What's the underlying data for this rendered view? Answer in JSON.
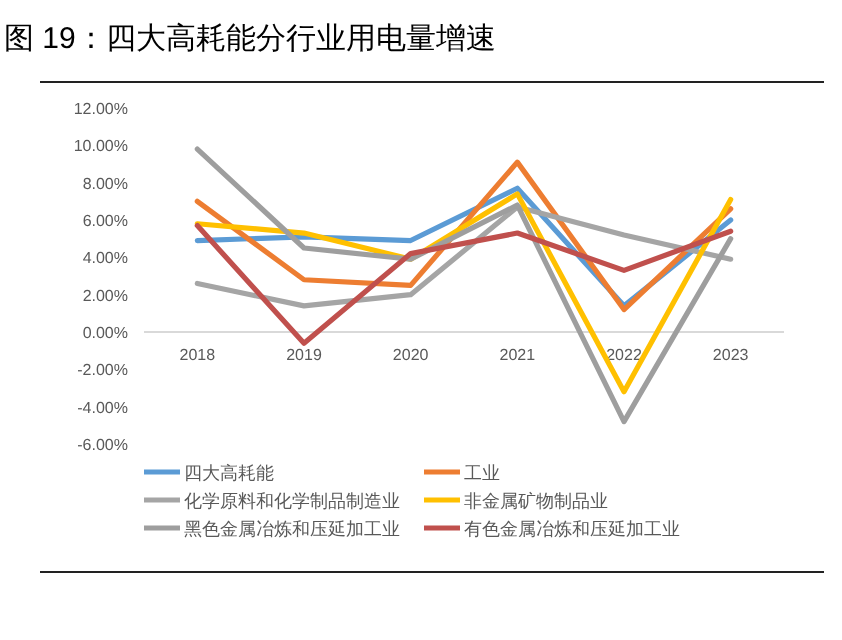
{
  "chart_data": {
    "type": "line",
    "title": "图 19：四大高耗能分行业用电量增速",
    "categories": [
      "2018",
      "2019",
      "2020",
      "2021",
      "2022",
      "2023"
    ],
    "series": [
      {
        "name": "四大高耗能",
        "color": "#5b9bd5",
        "values": [
          4.9,
          5.1,
          4.9,
          7.7,
          1.4,
          6.0
        ]
      },
      {
        "name": "工业",
        "color": "#ed7d31",
        "values": [
          7.0,
          2.8,
          2.5,
          9.1,
          1.2,
          6.6
        ]
      },
      {
        "name": "化学原料和化学制品制造业",
        "color": "#a5a5a5",
        "values": [
          2.6,
          1.4,
          2.0,
          6.7,
          5.2,
          3.9
        ]
      },
      {
        "name": "非金属矿物制品业",
        "color": "#ffc000",
        "values": [
          5.8,
          5.3,
          3.9,
          7.4,
          -3.2,
          7.1
        ]
      },
      {
        "name": "黑色金属冶炼和压延加工业",
        "color": "#9e9e9e",
        "values": [
          9.8,
          4.5,
          3.9,
          6.8,
          -4.8,
          5.0
        ]
      },
      {
        "name": "有色金属冶炼和压延加工业",
        "color": "#c0504d",
        "values": [
          5.7,
          -0.6,
          4.2,
          5.3,
          3.3,
          5.4
        ]
      }
    ],
    "ylim": [
      -6,
      12
    ],
    "yticks": [
      {
        "value": -6,
        "label": "-6.00%"
      },
      {
        "value": -4,
        "label": "-4.00%"
      },
      {
        "value": -2,
        "label": "-2.00%"
      },
      {
        "value": 0,
        "label": "0.00%"
      },
      {
        "value": 2,
        "label": "2.00%"
      },
      {
        "value": 4,
        "label": "4.00%"
      },
      {
        "value": 6,
        "label": "6.00%"
      },
      {
        "value": 8,
        "label": "8.00%"
      },
      {
        "value": 10,
        "label": "10.00%"
      },
      {
        "value": 12,
        "label": "12.00%"
      }
    ],
    "legend": "bottom",
    "marker": "none",
    "line_style": "solid"
  }
}
